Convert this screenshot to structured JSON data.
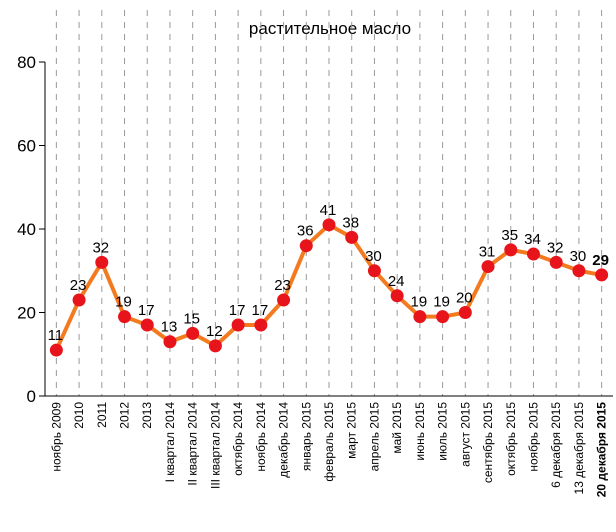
{
  "chart_data": {
    "type": "line",
    "title": "растительное масло",
    "categories": [
      "ноябрь 2009",
      "2010",
      "2011",
      "2012",
      "2013",
      "I квартал 2014",
      "II квартал 2014",
      "III квартал 2014",
      "октябрь 2014",
      "ноябрь 2014",
      "декабрь 2014",
      "январь 2015",
      "февраль 2015",
      "март 2015",
      "апрель 2015",
      "май 2015",
      "июнь 2015",
      "июль 2015",
      "август 2015",
      "сентябрь 2015",
      "октябрь 2015",
      "ноябрь 2015",
      "6 декабря 2015",
      "13 декабря 2015",
      "20 декабря 2015"
    ],
    "series": [
      {
        "color": "#f47a20",
        "marker_color": "#e8141c",
        "values": [
          11,
          23,
          32,
          19,
          17,
          13,
          15,
          12,
          17,
          17,
          23,
          36,
          41,
          38,
          30,
          24,
          19,
          19,
          20,
          31,
          35,
          34,
          32,
          30,
          29
        ]
      }
    ],
    "ylim": [
      0,
      80
    ],
    "yticks": [
      0,
      20,
      40,
      60,
      80
    ],
    "grid": true
  }
}
